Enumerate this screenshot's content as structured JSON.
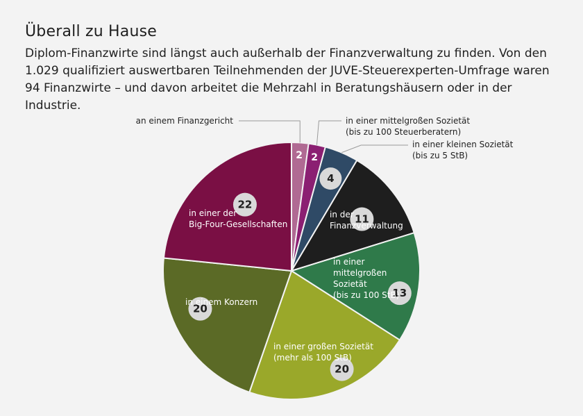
{
  "title": "Überall zu Hause",
  "subtitle": "Diplom-Finanzwirte sind längst auch außerhalb der Finanzverwaltung zu finden. Von den 1.029 qualifiziert auswertbaren Teilnehmenden der JUVE-Steuerexperten-Umfrage waren 94 Finanzwirte – und davon arbeitet die Mehrzahl in Beratungshäusern oder in der Industrie.",
  "chart_data": {
    "type": "pie",
    "total": 94,
    "start_angle": "12 o'clock",
    "direction": "clockwise",
    "slices": [
      {
        "label": "an einem Finanzgericht",
        "value": 2,
        "color": "#b06a93"
      },
      {
        "label": "in einer mittelgroßen Sozietät (bis zu 100 Steuerberatern)",
        "value": 2,
        "color": "#8b1f72"
      },
      {
        "label": "in einer kleinen Sozietät (bis zu 5 StB)",
        "value": 4,
        "color": "#2f4a66"
      },
      {
        "label": "in der Finanzverwaltung",
        "value": 11,
        "color": "#1e1e1e"
      },
      {
        "label": "in einer mittelgroßen Sozietät (bis zu 100 StB)",
        "value": 13,
        "color": "#2f7a4a"
      },
      {
        "label": "in einer großen Sozietät (mehr als 100 StB)",
        "value": 20,
        "color": "#9aa82a"
      },
      {
        "label": "in einem Konzern",
        "value": 20,
        "color": "#5b6a26"
      },
      {
        "label": "in einer der Big-Four-Gesellschaften",
        "value": 22,
        "color": "#7a0f44"
      }
    ],
    "callouts": {
      "finanzgericht": "an einem Finanzgericht",
      "mittel_1": "in einer mittelgroßen Sozietät",
      "mittel_2": "(bis zu 100 Steuerberatern)",
      "klein_1": "in einer kleinen Sozietät",
      "klein_2": "(bis zu 5 StB)"
    },
    "inner_labels": {
      "finanzverwaltung": [
        "in der",
        "Finanzverwaltung"
      ],
      "mittelgross": [
        "in einer",
        "mittelgroßen",
        "Sozietät",
        "(bis zu 100 StB)"
      ],
      "gross": [
        "in einer großen Sozietät",
        "(mehr als 100 StB)"
      ],
      "konzern": [
        "in einem Konzern"
      ],
      "bigfour": [
        "in einer der",
        "Big-Four-Gesellschaften"
      ]
    }
  }
}
